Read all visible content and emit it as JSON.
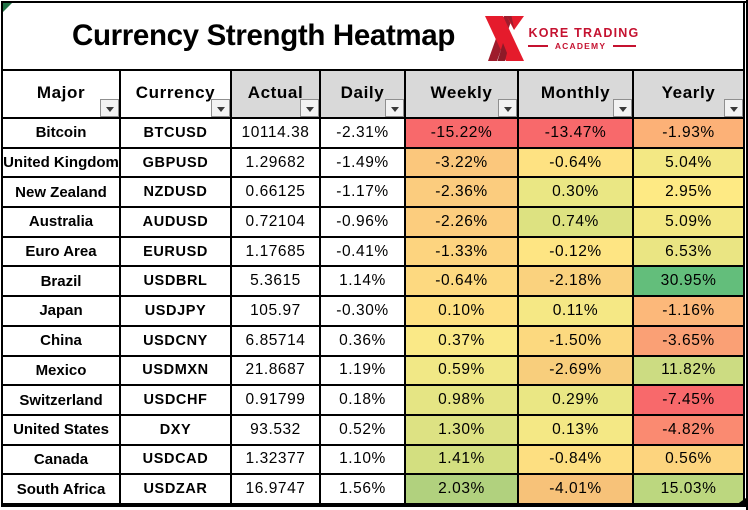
{
  "title": "Currency Strength Heatmap",
  "logo": {
    "line1": "KORE TRADING",
    "line2": "ACADEMY",
    "brand_color": "#C51230",
    "icon": "kore-x-logo",
    "icon_bright_red": "#E51B2C",
    "icon_dark_red": "#9E1C2C"
  },
  "colors": {
    "gridline": "#000000",
    "header_fill": "#D9D9D9",
    "header_fill_plain": "#FFFFFF",
    "scale_min_color": "#F8696B",
    "scale_mid_color": "#FFEB84",
    "scale_max_color": "#63BE7B",
    "error_indicator_green": "#217346"
  },
  "table": {
    "columns": [
      {
        "label": "Major",
        "header_bg": "#FFFFFF"
      },
      {
        "label": "Currency",
        "header_bg": "#FFFFFF"
      },
      {
        "label": "Actual",
        "header_bg": "#D9D9D9"
      },
      {
        "label": "Daily",
        "header_bg": "#D9D9D9"
      },
      {
        "label": "Weekly",
        "header_bg": "#D9D9D9"
      },
      {
        "label": "Monthly",
        "header_bg": "#D9D9D9"
      },
      {
        "label": "Yearly",
        "header_bg": "#D9D9D9"
      }
    ],
    "rows": [
      {
        "major": "Bitcoin",
        "currency": "BTCUSD",
        "actual": "10114.38",
        "daily": "-2.31%",
        "weekly": {
          "text": "-15.22%",
          "bg": "#F8696B"
        },
        "monthly": {
          "text": "-13.47%",
          "bg": "#F8696B"
        },
        "yearly": {
          "text": "-1.93%",
          "bg": "#FCB177"
        }
      },
      {
        "major": "United Kingdom",
        "currency": "GBPUSD",
        "actual": "1.29682",
        "daily": "-1.49%",
        "weekly": {
          "text": "-3.22%",
          "bg": "#FBC77C"
        },
        "monthly": {
          "text": "-0.64%",
          "bg": "#FEE282"
        },
        "yearly": {
          "text": "5.04%",
          "bg": "#F3E884"
        }
      },
      {
        "major": "New Zealand",
        "currency": "NZDUSD",
        "actual": "0.66125",
        "daily": "-1.17%",
        "weekly": {
          "text": "-2.36%",
          "bg": "#FBCC7E"
        },
        "monthly": {
          "text": "0.30%",
          "bg": "#EAE784"
        },
        "yearly": {
          "text": "2.95%",
          "bg": "#FEEA84"
        }
      },
      {
        "major": "Australia",
        "currency": "AUDUSD",
        "actual": "0.72104",
        "daily": "-0.96%",
        "weekly": {
          "text": "-2.26%",
          "bg": "#FCCD7E"
        },
        "monthly": {
          "text": "0.74%",
          "bg": "#DDE281"
        },
        "yearly": {
          "text": "5.09%",
          "bg": "#F3E883"
        }
      },
      {
        "major": "Euro Area",
        "currency": "EURUSD",
        "actual": "1.17685",
        "daily": "-0.41%",
        "weekly": {
          "text": "-1.33%",
          "bg": "#FDD47F"
        },
        "monthly": {
          "text": "-0.12%",
          "bg": "#FEE583"
        },
        "yearly": {
          "text": "6.53%",
          "bg": "#EAE583"
        }
      },
      {
        "major": "Brazil",
        "currency": "USDBRL",
        "actual": "5.3615",
        "daily": "1.14%",
        "weekly": {
          "text": "-0.64%",
          "bg": "#FDD980"
        },
        "monthly": {
          "text": "-2.18%",
          "bg": "#FAD27E"
        },
        "yearly": {
          "text": "30.95%",
          "bg": "#63BE7B"
        }
      },
      {
        "major": "Japan",
        "currency": "USDJPY",
        "actual": "105.97",
        "daily": "-0.30%",
        "weekly": {
          "text": "0.10%",
          "bg": "#FEE082"
        },
        "monthly": {
          "text": "0.11%",
          "bg": "#F5E885"
        },
        "yearly": {
          "text": "-1.16%",
          "bg": "#FCB87A"
        }
      },
      {
        "major": "China",
        "currency": "USDCNY",
        "actual": "6.85714",
        "daily": "0.36%",
        "weekly": {
          "text": "0.37%",
          "bg": "#FAE987"
        },
        "monthly": {
          "text": "-1.50%",
          "bg": "#FCD97F"
        },
        "yearly": {
          "text": "-3.65%",
          "bg": "#FAA075"
        }
      },
      {
        "major": "Mexico",
        "currency": "USDMXN",
        "actual": "21.8687",
        "daily": "1.19%",
        "weekly": {
          "text": "0.59%",
          "bg": "#F1E886"
        },
        "monthly": {
          "text": "-2.69%",
          "bg": "#F8CE7C"
        },
        "yearly": {
          "text": "11.82%",
          "bg": "#CCDC82"
        }
      },
      {
        "major": "Switzerland",
        "currency": "USDCHF",
        "actual": "0.91799",
        "daily": "0.18%",
        "weekly": {
          "text": "0.98%",
          "bg": "#E5E584"
        },
        "monthly": {
          "text": "0.29%",
          "bg": "#EAE784"
        },
        "yearly": {
          "text": "-7.45%",
          "bg": "#F8696B"
        }
      },
      {
        "major": "United States",
        "currency": "DXY",
        "actual": "93.532",
        "daily": "0.52%",
        "weekly": {
          "text": "1.30%",
          "bg": "#DDE283"
        },
        "monthly": {
          "text": "0.13%",
          "bg": "#F4E885"
        },
        "yearly": {
          "text": "-4.82%",
          "bg": "#FA8A71"
        }
      },
      {
        "major": "Canada",
        "currency": "USDCAD",
        "actual": "1.32377",
        "daily": "1.10%",
        "weekly": {
          "text": "1.41%",
          "bg": "#D3DF80"
        },
        "monthly": {
          "text": "-0.84%",
          "bg": "#FDDF81"
        },
        "yearly": {
          "text": "0.56%",
          "bg": "#FDD47E"
        }
      },
      {
        "major": "South Africa",
        "currency": "USDZAR",
        "actual": "16.9747",
        "daily": "1.56%",
        "weekly": {
          "text": "2.03%",
          "bg": "#B1D17E"
        },
        "monthly": {
          "text": "-4.01%",
          "bg": "#F7C279"
        },
        "yearly": {
          "text": "15.03%",
          "bg": "#BCD77F"
        }
      }
    ]
  },
  "chart_data": {
    "type": "heatmap",
    "title": "Currency Strength Heatmap",
    "row_labels": [
      "Bitcoin",
      "United Kingdom",
      "New Zealand",
      "Australia",
      "Euro Area",
      "Brazil",
      "Japan",
      "China",
      "Mexico",
      "Switzerland",
      "United States",
      "Canada",
      "South Africa"
    ],
    "row_symbols": [
      "BTCUSD",
      "GBPUSD",
      "NZDUSD",
      "AUDUSD",
      "EURUSD",
      "USDBRL",
      "USDJPY",
      "USDCNY",
      "USDMXN",
      "USDCHF",
      "DXY",
      "USDCAD",
      "USDZAR"
    ],
    "actual": [
      10114.38,
      1.29682,
      0.66125,
      0.72104,
      1.17685,
      5.3615,
      105.97,
      6.85714,
      21.8687,
      0.91799,
      93.532,
      1.32377,
      16.9747
    ],
    "heat_columns": [
      "Daily",
      "Weekly",
      "Monthly",
      "Yearly"
    ],
    "series": [
      {
        "name": "Daily",
        "unit": "%",
        "values": [
          -2.31,
          -1.49,
          -1.17,
          -0.96,
          -0.41,
          1.14,
          -0.3,
          0.36,
          1.19,
          0.18,
          0.52,
          1.1,
          1.56
        ]
      },
      {
        "name": "Weekly",
        "unit": "%",
        "values": [
          -15.22,
          -3.22,
          -2.36,
          -2.26,
          -1.33,
          -0.64,
          0.1,
          0.37,
          0.59,
          0.98,
          1.3,
          1.41,
          2.03
        ]
      },
      {
        "name": "Monthly",
        "unit": "%",
        "values": [
          -13.47,
          -0.64,
          0.3,
          0.74,
          -0.12,
          -2.18,
          0.11,
          -1.5,
          -2.69,
          0.29,
          0.13,
          -0.84,
          -4.01
        ]
      },
      {
        "name": "Yearly",
        "unit": "%",
        "values": [
          -1.93,
          5.04,
          2.95,
          5.09,
          6.53,
          30.95,
          -1.16,
          -3.65,
          11.82,
          -7.45,
          -4.82,
          0.56,
          15.03
        ]
      }
    ],
    "color_scale": {
      "min": "#F8696B",
      "mid": "#FFEB84",
      "max": "#63BE7B",
      "colored_columns": [
        "Weekly",
        "Monthly",
        "Yearly"
      ]
    }
  }
}
